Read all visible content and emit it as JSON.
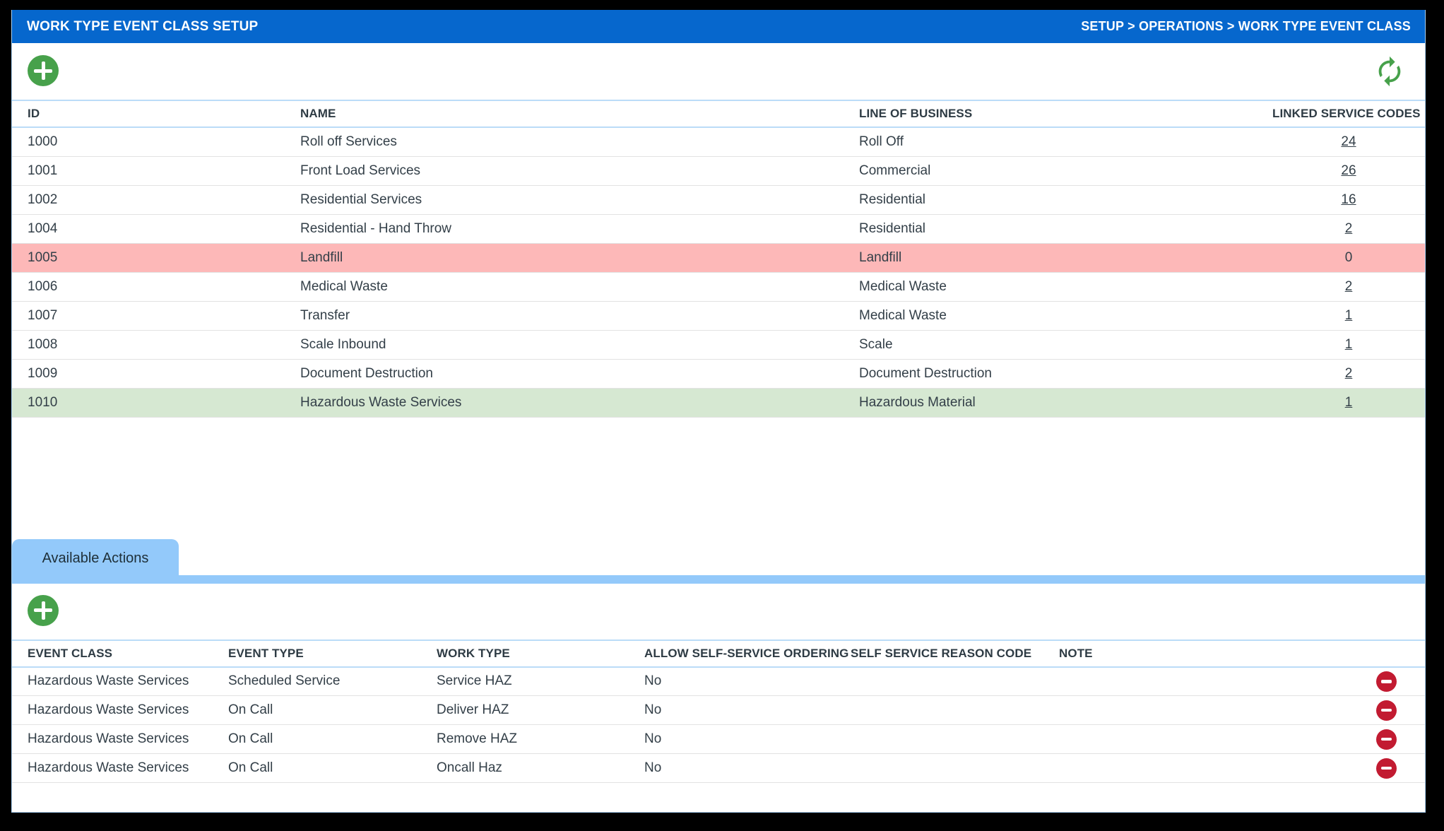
{
  "header": {
    "title": "WORK TYPE EVENT CLASS SETUP",
    "breadcrumb": "SETUP > OPERATIONS > WORK TYPE EVENT CLASS"
  },
  "colors": {
    "titlebar_blue": "#0667CD",
    "tab_blue": "#93C9FA",
    "row_highlight_pink": "#FDB8B8",
    "row_highlight_green": "#D6E8D2",
    "add_green": "#47A14B",
    "refresh_green": "#47A14B",
    "delete_red": "#C21B31"
  },
  "event_class_table": {
    "columns": [
      "ID",
      "NAME",
      "LINE OF BUSINESS",
      "LINKED SERVICE CODES"
    ],
    "rows": [
      {
        "id": "1000",
        "name": "Roll off Services",
        "line_of_business": "Roll Off",
        "linked_service_codes": "24",
        "is_link": true,
        "highlight": "none"
      },
      {
        "id": "1001",
        "name": "Front Load Services",
        "line_of_business": "Commercial",
        "linked_service_codes": "26",
        "is_link": true,
        "highlight": "none"
      },
      {
        "id": "1002",
        "name": "Residential Services",
        "line_of_business": "Residential",
        "linked_service_codes": "16",
        "is_link": true,
        "highlight": "none"
      },
      {
        "id": "1004",
        "name": "Residential - Hand Throw",
        "line_of_business": "Residential",
        "linked_service_codes": "2",
        "is_link": true,
        "highlight": "none"
      },
      {
        "id": "1005",
        "name": "Landfill",
        "line_of_business": "Landfill",
        "linked_service_codes": "0",
        "is_link": false,
        "highlight": "pink"
      },
      {
        "id": "1006",
        "name": "Medical Waste",
        "line_of_business": "Medical Waste",
        "linked_service_codes": "2",
        "is_link": true,
        "highlight": "none"
      },
      {
        "id": "1007",
        "name": "Transfer",
        "line_of_business": "Medical Waste",
        "linked_service_codes": "1",
        "is_link": true,
        "highlight": "none"
      },
      {
        "id": "1008",
        "name": "Scale Inbound",
        "line_of_business": "Scale",
        "linked_service_codes": "1",
        "is_link": true,
        "highlight": "none"
      },
      {
        "id": "1009",
        "name": "Document Destruction",
        "line_of_business": "Document Destruction",
        "linked_service_codes": "2",
        "is_link": true,
        "highlight": "none"
      },
      {
        "id": "1010",
        "name": "Hazardous Waste Services",
        "line_of_business": "Hazardous Material",
        "linked_service_codes": "1",
        "is_link": true,
        "highlight": "green"
      }
    ]
  },
  "tabs": {
    "available_actions": "Available Actions"
  },
  "actions_table": {
    "columns": [
      "EVENT CLASS",
      "EVENT TYPE",
      "WORK TYPE",
      "ALLOW SELF-SERVICE ORDERING",
      "SELF SERVICE REASON CODE",
      "NOTE"
    ],
    "rows": [
      {
        "event_class": "Hazardous Waste Services",
        "event_type": "Scheduled Service",
        "work_type": "Service HAZ",
        "allow_self_service_ordering": "No",
        "self_service_reason_code": "",
        "note": ""
      },
      {
        "event_class": "Hazardous Waste Services",
        "event_type": "On Call",
        "work_type": "Deliver HAZ",
        "allow_self_service_ordering": "No",
        "self_service_reason_code": "",
        "note": ""
      },
      {
        "event_class": "Hazardous Waste Services",
        "event_type": "On Call",
        "work_type": "Remove HAZ",
        "allow_self_service_ordering": "No",
        "self_service_reason_code": "",
        "note": ""
      },
      {
        "event_class": "Hazardous Waste Services",
        "event_type": "On Call",
        "work_type": "Oncall Haz",
        "allow_self_service_ordering": "No",
        "self_service_reason_code": "",
        "note": ""
      }
    ]
  }
}
